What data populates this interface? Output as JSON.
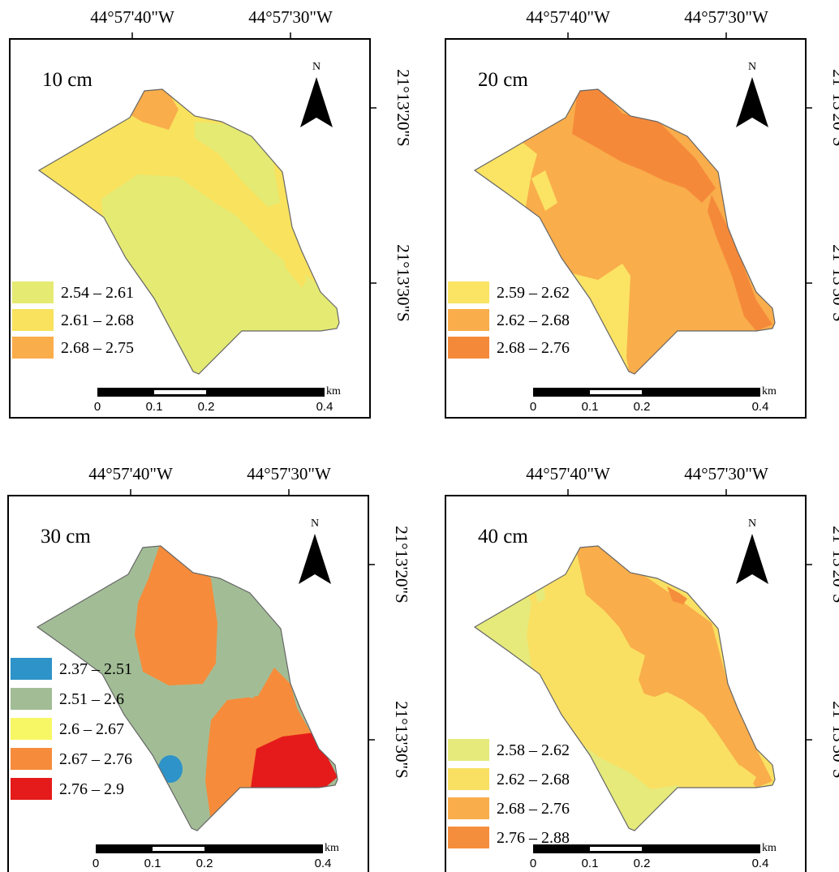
{
  "figure": {
    "panels": [
      {
        "id": "p10",
        "depth_label": "10 cm",
        "lon_labels": [
          "44°57'40\"W",
          "44°57'30\"W"
        ],
        "lat_labels": [
          "21°13'20\"S",
          "21°13'30\"S"
        ],
        "north_label": "N",
        "legend": [
          {
            "range": "2.54 – 2.61",
            "color": "#e5ea73"
          },
          {
            "range": "2.61 – 2.68",
            "color": "#f8e25e"
          },
          {
            "range": "2.68 – 2.75",
            "color": "#f9ad4b"
          }
        ],
        "scale": {
          "ticks": [
            "0",
            "0.1",
            "0.2",
            "0.4"
          ],
          "unit": "km"
        }
      },
      {
        "id": "p20",
        "depth_label": "20 cm",
        "lon_labels": [
          "44°57'40\"W",
          "44°57'30\"W"
        ],
        "lat_labels": [
          "21°13'20\"S",
          "21°13'30\"S"
        ],
        "north_label": "N",
        "legend": [
          {
            "range": "2.59 – 2.62",
            "color": "#fbe364"
          },
          {
            "range": "2.62 – 2.68",
            "color": "#f9ad4b"
          },
          {
            "range": "2.68 – 2.76",
            "color": "#f5893a"
          }
        ],
        "scale": {
          "ticks": [
            "0",
            "0.1",
            "0.2",
            "0.4"
          ],
          "unit": "km"
        }
      },
      {
        "id": "p30",
        "depth_label": "30 cm",
        "lon_labels": [
          "44°57'40\"W",
          "44°57'30\"W"
        ],
        "lat_labels": [
          "21°13'20\"S",
          "21°13'30\"S"
        ],
        "north_label": "N",
        "legend": [
          {
            "range": "2.37 – 2.51",
            "color": "#2e93c8"
          },
          {
            "range": "2.51 – 2.6",
            "color": "#a2bd96"
          },
          {
            "range": "2.6 – 2.67",
            "color": "#f7f765"
          },
          {
            "range": "2.67 – 2.76",
            "color": "#f68c3b"
          },
          {
            "range": "2.76 – 2.9",
            "color": "#e51b1b"
          }
        ],
        "scale": {
          "ticks": [
            "0",
            "0.1",
            "0.2",
            "0.4"
          ],
          "unit": "km"
        }
      },
      {
        "id": "p40",
        "depth_label": "40 cm",
        "lon_labels": [
          "44°57'40\"W",
          "44°57'30\"W"
        ],
        "lat_labels": [
          "21°13'20\"S",
          "21°13'30\"S"
        ],
        "north_label": "N",
        "legend": [
          {
            "range": "2.58 – 2.62",
            "color": "#e5ea7b"
          },
          {
            "range": "2.62 – 2.68",
            "color": "#f9e063"
          },
          {
            "range": "2.68 – 2.76",
            "color": "#f9ad4b"
          },
          {
            "range": "2.76 – 2.88",
            "color": "#f58e3c"
          }
        ],
        "scale": {
          "ticks": [
            "0",
            "0.1",
            "0.2",
            "0.4"
          ],
          "unit": "km"
        }
      }
    ]
  }
}
